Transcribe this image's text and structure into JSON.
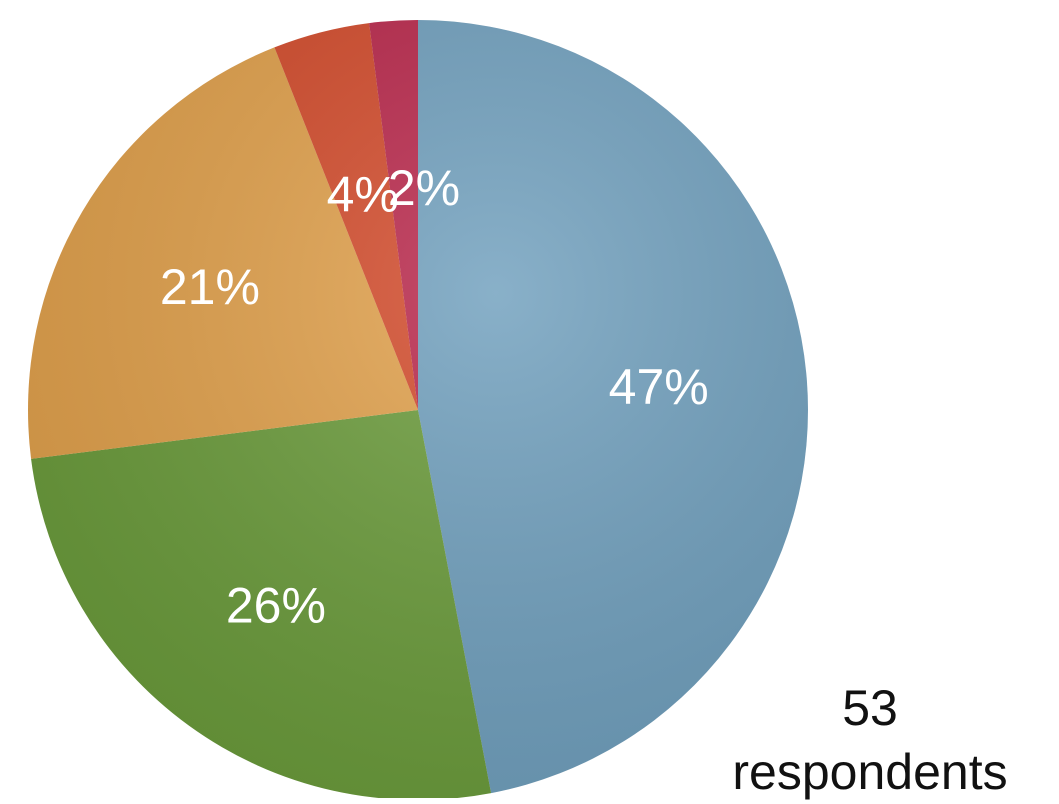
{
  "chart_data": {
    "type": "pie",
    "slices": [
      {
        "label": "47%",
        "value": 47,
        "color": "#6f9fbd"
      },
      {
        "label": "26%",
        "value": 26,
        "color": "#6a9b3a"
      },
      {
        "label": "21%",
        "value": 21,
        "color": "#e1a04a"
      },
      {
        "label": "4%",
        "value": 4,
        "color": "#d34a2a"
      },
      {
        "label": "2%",
        "value": 2,
        "color": "#b9264a"
      }
    ],
    "annotation": "53\nrespondents"
  }
}
